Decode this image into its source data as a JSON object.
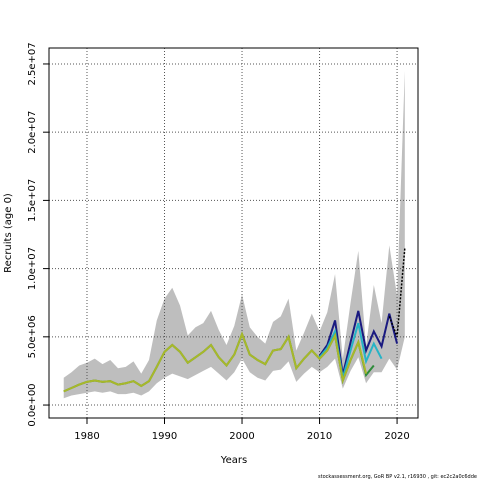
{
  "chart_data": {
    "type": "line",
    "xlabel": "Years",
    "ylabel": "Recruits (age 0)",
    "footnote": "stockassessment.org, GoR BP v2.1, r16930 , git: ec2c2a0c6dde",
    "grid": true,
    "xlim": [
      1975.1,
      2022.7
    ],
    "ylim": [
      -950000,
      26170000
    ],
    "xticks": [
      1980,
      1990,
      2000,
      2010,
      2020
    ],
    "yticks": [
      {
        "value": 0,
        "label": "0.0e+00"
      },
      {
        "value": 5000000,
        "label": "5.0e+06"
      },
      {
        "value": 10000000,
        "label": "1.0e+07"
      },
      {
        "value": 15000000,
        "label": "1.5e+07"
      },
      {
        "value": 20000000,
        "label": "2.0e+07"
      },
      {
        "value": 25000000,
        "label": "2.5e+07"
      }
    ],
    "x": [
      1977,
      1978,
      1979,
      1980,
      1981,
      1982,
      1983,
      1984,
      1985,
      1986,
      1987,
      1988,
      1989,
      1990,
      1991,
      1992,
      1993,
      1994,
      1995,
      1996,
      1997,
      1998,
      1999,
      2000,
      2001,
      2002,
      2003,
      2004,
      2005,
      2006,
      2007,
      2008,
      2009,
      2010,
      2011,
      2012,
      2013,
      2014,
      2015,
      2016,
      2017,
      2018,
      2019,
      2020,
      2021
    ],
    "band": {
      "color": "#bebebe",
      "upper": [
        2000000.0,
        2400000.0,
        2900000.0,
        3100000.0,
        3400000.0,
        3000000.0,
        3300000.0,
        2700000.0,
        2800000.0,
        3200000.0,
        2300000.0,
        3300000.0,
        6200000.0,
        7800000.0,
        8600000.0,
        7300000.0,
        5100000.0,
        5700000.0,
        6000000.0,
        6900000.0,
        5500000.0,
        4400000.0,
        5800000.0,
        8100000.0,
        5700000.0,
        5000000.0,
        4500000.0,
        6100000.0,
        6500000.0,
        7800000.0,
        4000000.0,
        5300000.0,
        6700000.0,
        5400000.0,
        6800000.0,
        9600000.0,
        3400000.0,
        7500000.0,
        11300000.0,
        4300000.0,
        8800000.0,
        6000000.0,
        11700000.0,
        8000000.0,
        24500000.0
      ],
      "lower": [
        500000.0,
        700000.0,
        800000.0,
        900000.0,
        1000000.0,
        900000.0,
        1000000.0,
        800000.0,
        800000.0,
        900000.0,
        700000.0,
        1000000.0,
        1600000.0,
        2000000.0,
        2300000.0,
        2100000.0,
        1900000.0,
        2200000.0,
        2500000.0,
        2800000.0,
        2300000.0,
        1800000.0,
        2400000.0,
        3400000.0,
        2400000.0,
        2000000.0,
        1800000.0,
        2500000.0,
        2600000.0,
        3200000.0,
        1700000.0,
        2300000.0,
        2800000.0,
        2400000.0,
        2800000.0,
        3400000.0,
        1200000.0,
        2500000.0,
        3500000.0,
        1600000.0,
        2400000.0,
        2400000.0,
        3400000.0,
        2600000.0,
        5000000.0
      ]
    },
    "series": [
      {
        "color": "#1a1a80",
        "dash": false,
        "values": [
          null,
          null,
          null,
          null,
          null,
          null,
          null,
          null,
          null,
          null,
          null,
          null,
          null,
          null,
          null,
          null,
          null,
          null,
          null,
          null,
          null,
          null,
          null,
          null,
          null,
          null,
          null,
          null,
          null,
          null,
          null,
          null,
          null,
          3600000.0,
          4400000.0,
          6200000.0,
          2200000.0,
          4600000.0,
          6900000.0,
          4000000.0,
          5400000.0,
          4300000.0,
          6700000.0,
          4500000.0,
          null
        ]
      },
      {
        "color": "#26b3c6",
        "dash": false,
        "values": [
          null,
          null,
          null,
          null,
          null,
          null,
          null,
          null,
          null,
          null,
          null,
          null,
          null,
          null,
          null,
          null,
          null,
          null,
          null,
          null,
          null,
          null,
          null,
          null,
          null,
          null,
          null,
          null,
          null,
          null,
          null,
          null,
          null,
          3500000.0,
          4200000.0,
          5400000.0,
          2000000.0,
          4000000.0,
          6000000.0,
          3200000.0,
          4500000.0,
          3400000.0,
          null,
          null,
          null
        ]
      },
      {
        "color": "#2e8b3a",
        "dash": false,
        "values": [
          1000000.0,
          1250000.0,
          1500000.0,
          1700000.0,
          1800000.0,
          1700000.0,
          1750000.0,
          1500000.0,
          1600000.0,
          1750000.0,
          1400000.0,
          1750000.0,
          2800000.0,
          3900000.0,
          4400000.0,
          3900000.0,
          3100000.0,
          3500000.0,
          3900000.0,
          4400000.0,
          3500000.0,
          2900000.0,
          3700000.0,
          5200000.0,
          3700000.0,
          3300000.0,
          3000000.0,
          4000000.0,
          4100000.0,
          5000000.0,
          2700000.0,
          3400000.0,
          4000000.0,
          3400000.0,
          4000000.0,
          5100000.0,
          1800000.0,
          3300000.0,
          4600000.0,
          2200000.0,
          2900000.0,
          null,
          null,
          null,
          null
        ]
      },
      {
        "color": "#a8b82a",
        "dash": false,
        "values": [
          1000000.0,
          1250000.0,
          1500000.0,
          1700000.0,
          1800000.0,
          1700000.0,
          1750000.0,
          1500000.0,
          1600000.0,
          1750000.0,
          1400000.0,
          1750000.0,
          2800000.0,
          3900000.0,
          4400000.0,
          3900000.0,
          3100000.0,
          3500000.0,
          3900000.0,
          4400000.0,
          3500000.0,
          2900000.0,
          3700000.0,
          5200000.0,
          3700000.0,
          3300000.0,
          3000000.0,
          4000000.0,
          4100000.0,
          5000000.0,
          2700000.0,
          3400000.0,
          4000000.0,
          3400000.0,
          4000000.0,
          5100000.0,
          1800000.0,
          3300000.0,
          4600000.0,
          2300000.0,
          null,
          null,
          null,
          null,
          null
        ]
      },
      {
        "color": "#000000",
        "dash": true,
        "values": [
          null,
          null,
          null,
          null,
          null,
          null,
          null,
          null,
          null,
          null,
          null,
          null,
          null,
          null,
          null,
          null,
          null,
          null,
          null,
          null,
          null,
          null,
          null,
          null,
          null,
          null,
          null,
          null,
          null,
          null,
          null,
          null,
          null,
          null,
          null,
          null,
          null,
          null,
          null,
          null,
          null,
          null,
          6500000.0,
          5000000.0,
          11500000.0
        ]
      }
    ]
  }
}
